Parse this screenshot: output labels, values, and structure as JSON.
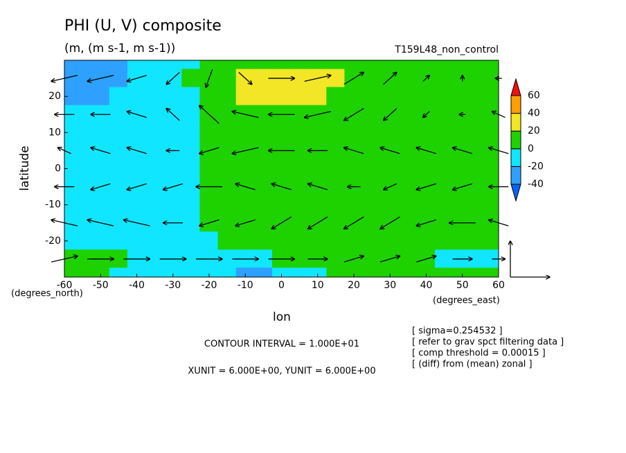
{
  "chart_data": {
    "type": "contour",
    "title": "PHI (U, V) composite",
    "subtitle": "(m, (m s-1, m s-1))",
    "run_label": "T159L48_non_control",
    "x_label": "lon",
    "x_unit_label": "(degrees_east)",
    "y_label": "latitude",
    "y_unit_label": "(degrees_north)",
    "xlim": [
      -60,
      60
    ],
    "ylim": [
      -30,
      30
    ],
    "xticks": [
      -60,
      -50,
      -40,
      -30,
      -20,
      -10,
      0,
      10,
      20,
      30,
      40,
      50,
      60
    ],
    "yticks": [
      -20,
      -10,
      0,
      10,
      20
    ],
    "x": [
      -60,
      -55,
      -50,
      -45,
      -40,
      -35,
      -30,
      -25,
      -20,
      -15,
      -10,
      -5,
      0,
      5,
      10,
      15,
      20,
      25,
      30,
      35,
      40,
      45,
      50,
      55,
      60
    ],
    "y": [
      30,
      25,
      20,
      15,
      10,
      5,
      0,
      -5,
      -10,
      -15,
      -20,
      -25,
      -30
    ],
    "z": [
      [
        -30,
        -30,
        -30,
        -30,
        -10,
        -10,
        -10,
        -10,
        10,
        10,
        10,
        10,
        10,
        10,
        10,
        10,
        10,
        10,
        10,
        10,
        10,
        10,
        10,
        10,
        10
      ],
      [
        -30,
        -30,
        -30,
        -30,
        -10,
        -10,
        -10,
        10,
        10,
        10,
        30,
        30,
        30,
        30,
        30,
        30,
        10,
        10,
        10,
        10,
        10,
        10,
        10,
        10,
        10
      ],
      [
        -30,
        -30,
        -30,
        -10,
        -10,
        -10,
        -10,
        -10,
        10,
        10,
        30,
        30,
        30,
        30,
        30,
        10,
        10,
        10,
        10,
        10,
        10,
        10,
        10,
        10,
        10
      ],
      [
        -10,
        -10,
        -10,
        -10,
        -10,
        -10,
        -10,
        -10,
        10,
        10,
        10,
        10,
        10,
        10,
        10,
        10,
        10,
        10,
        10,
        10,
        10,
        10,
        10,
        10,
        10
      ],
      [
        -10,
        -10,
        -10,
        -10,
        -10,
        -10,
        -10,
        -10,
        10,
        10,
        10,
        10,
        10,
        10,
        10,
        10,
        10,
        10,
        10,
        10,
        10,
        10,
        10,
        10,
        10
      ],
      [
        -10,
        -10,
        -10,
        -10,
        -10,
        -10,
        -10,
        -10,
        10,
        10,
        10,
        10,
        10,
        10,
        10,
        10,
        10,
        10,
        10,
        10,
        10,
        10,
        10,
        10,
        10
      ],
      [
        -10,
        -10,
        -10,
        -10,
        -10,
        -10,
        -10,
        -10,
        10,
        10,
        10,
        10,
        10,
        10,
        10,
        10,
        10,
        10,
        10,
        10,
        10,
        10,
        10,
        10,
        10
      ],
      [
        -10,
        -10,
        -10,
        -10,
        -10,
        -10,
        -10,
        -10,
        10,
        10,
        10,
        10,
        10,
        10,
        10,
        10,
        10,
        10,
        10,
        10,
        10,
        10,
        10,
        10,
        10
      ],
      [
        -10,
        -10,
        -10,
        -10,
        -10,
        -10,
        -10,
        -10,
        10,
        10,
        10,
        10,
        10,
        10,
        10,
        10,
        10,
        10,
        10,
        10,
        10,
        10,
        10,
        10,
        10
      ],
      [
        -10,
        -10,
        -10,
        -10,
        -10,
        -10,
        -10,
        -10,
        10,
        10,
        10,
        10,
        10,
        10,
        10,
        10,
        10,
        10,
        10,
        10,
        10,
        10,
        10,
        10,
        10
      ],
      [
        -10,
        -10,
        -10,
        -10,
        -10,
        -10,
        -10,
        -10,
        -10,
        10,
        10,
        10,
        10,
        10,
        10,
        10,
        10,
        10,
        10,
        10,
        10,
        10,
        10,
        10,
        10
      ],
      [
        10,
        10,
        10,
        10,
        -10,
        -10,
        -10,
        -10,
        -10,
        -10,
        -10,
        -10,
        10,
        10,
        10,
        10,
        10,
        10,
        10,
        10,
        10,
        -10,
        -10,
        -10,
        -10
      ],
      [
        10,
        10,
        10,
        -10,
        -10,
        -10,
        -10,
        -10,
        -10,
        -10,
        -30,
        -30,
        -10,
        -10,
        -10,
        10,
        10,
        10,
        10,
        10,
        10,
        10,
        10,
        10,
        10
      ]
    ],
    "colorbar": {
      "levels": [
        -40,
        -20,
        0,
        20,
        40,
        60
      ],
      "colors": [
        "#0a64f0",
        "#2ea0ff",
        "#10e6ff",
        "#1ed200",
        "#f2e626",
        "#ff9e00",
        "#f01010"
      ]
    },
    "vectors": {
      "x": [
        -60,
        -50,
        -40,
        -30,
        -20,
        -10,
        0,
        10,
        20,
        30,
        40,
        50,
        60
      ],
      "y": [
        25,
        15,
        5,
        -5,
        -15,
        -25
      ],
      "u": [
        [
          -4,
          -4,
          -3,
          -2,
          -1,
          2,
          4,
          4,
          3,
          2,
          1,
          0,
          -1
        ],
        [
          -3,
          -3,
          -3,
          -2,
          -3,
          -4,
          -4,
          -4,
          -3,
          -2,
          -1,
          -1,
          -2
        ],
        [
          -2,
          -3,
          -3,
          -2,
          -3,
          -4,
          -4,
          -3,
          -3,
          -3,
          -3,
          -3,
          -3
        ],
        [
          -3,
          -3,
          -3,
          -3,
          -4,
          -3,
          -3,
          -3,
          -2,
          -2,
          -3,
          -3,
          -3
        ],
        [
          -4,
          -4,
          -4,
          -3,
          -3,
          -3,
          -3,
          -3,
          -3,
          -3,
          -3,
          -4,
          -3
        ],
        [
          4,
          4,
          4,
          4,
          4,
          4,
          4,
          3,
          3,
          3,
          3,
          3,
          2
        ]
      ],
      "v": [
        [
          -1,
          -1,
          -1,
          -2,
          -3,
          -2,
          0,
          1,
          2,
          2,
          1,
          1,
          0
        ],
        [
          0,
          0,
          1,
          2,
          3,
          1,
          0,
          -1,
          -2,
          -2,
          -1,
          0,
          1
        ],
        [
          1,
          1,
          1,
          0,
          -1,
          -1,
          0,
          0,
          1,
          1,
          1,
          1,
          1
        ],
        [
          0,
          -1,
          -1,
          -1,
          0,
          1,
          1,
          1,
          0,
          -1,
          -1,
          -1,
          0
        ],
        [
          1,
          1,
          1,
          0,
          -1,
          -1,
          -2,
          -2,
          -2,
          -2,
          -1,
          0,
          1
        ],
        [
          1,
          0,
          0,
          0,
          0,
          0,
          0,
          0,
          1,
          1,
          1,
          0,
          0
        ]
      ],
      "xunit": 6,
      "yunit": 6
    },
    "contour_interval_label": "CONTOUR INTERVAL = 1.000E+01",
    "unit_label": "XUNIT = 6.000E+00, YUNIT = 6.000E+00",
    "notes": [
      "[ sigma=0.254532 ]",
      "[ refer to grav spct filtering data ]",
      "[ comp threshold = 0.00015 ]",
      "[ (diff) from (mean) zonal ]"
    ]
  }
}
